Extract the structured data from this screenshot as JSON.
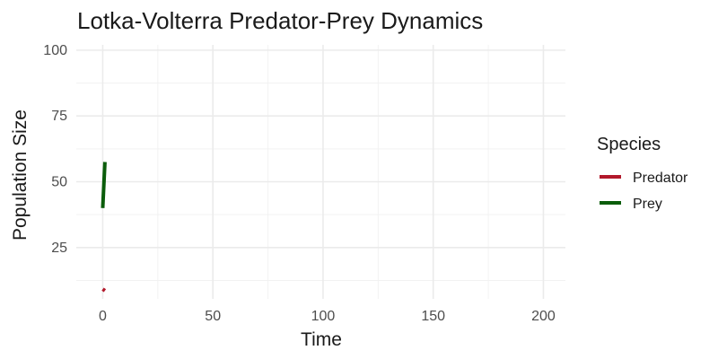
{
  "chart_data": {
    "type": "line",
    "title": "Lotka-Volterra Predator-Prey Dynamics",
    "xlabel": "Time",
    "ylabel": "Population Size",
    "xlim": [
      -12,
      210
    ],
    "ylim": [
      5.5,
      102
    ],
    "x_ticks": [
      0,
      50,
      100,
      150,
      200
    ],
    "y_ticks": [
      25,
      50,
      75,
      100
    ],
    "grid": true,
    "legend": {
      "title": "Species",
      "position": "right"
    },
    "series": [
      {
        "name": "Predator",
        "color": "#b2182b",
        "x": [
          0,
          1
        ],
        "y": [
          9.2,
          8.6
        ]
      },
      {
        "name": "Prey",
        "color": "#0b5d0b",
        "x": [
          0,
          1
        ],
        "y": [
          40,
          57.5
        ]
      }
    ]
  }
}
